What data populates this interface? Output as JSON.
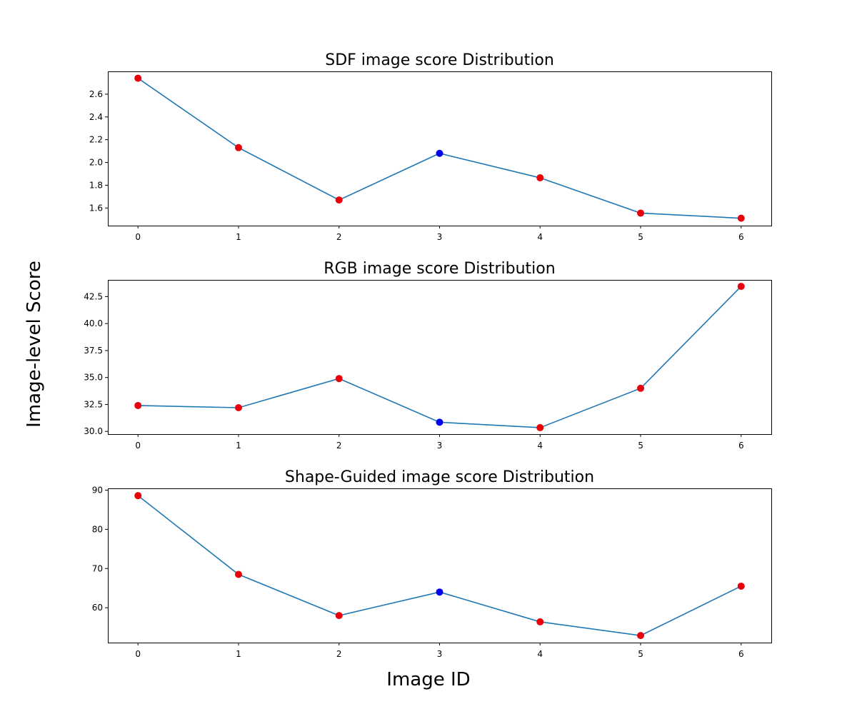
{
  "figure": {
    "ylabel": "Image-level Score",
    "xlabel": "Image ID"
  },
  "colors": {
    "line": "#1f77b4",
    "point_default": "#e8000b",
    "point_highlight": "#0000ee",
    "frame": "#000000"
  },
  "chart_data": [
    {
      "type": "line",
      "title": "SDF image score Distribution",
      "x": [
        0,
        1,
        2,
        3,
        4,
        5,
        6
      ],
      "values": [
        2.74,
        2.13,
        1.67,
        2.08,
        1.865,
        1.555,
        1.51
      ],
      "highlight_index": 3,
      "xlim": [
        -0.3,
        6.3
      ],
      "ylim": [
        1.445,
        2.8
      ],
      "yticks": [
        1.6,
        1.8,
        2.0,
        2.2,
        2.4,
        2.6
      ],
      "ytick_labels": [
        "1.6",
        "1.8",
        "2.0",
        "2.2",
        "2.4",
        "2.6"
      ],
      "xticks": [
        0,
        1,
        2,
        3,
        4,
        5,
        6
      ],
      "xtick_labels": [
        "0",
        "1",
        "2",
        "3",
        "4",
        "5",
        "6"
      ],
      "grid": false
    },
    {
      "type": "line",
      "title": "RGB image score Distribution",
      "x": [
        0,
        1,
        2,
        3,
        4,
        5,
        6
      ],
      "values": [
        32.4,
        32.2,
        34.9,
        30.85,
        30.35,
        34.0,
        43.45
      ],
      "highlight_index": 3,
      "xlim": [
        -0.3,
        6.3
      ],
      "ylim": [
        29.75,
        44.05
      ],
      "yticks": [
        30.0,
        32.5,
        35.0,
        37.5,
        40.0,
        42.5
      ],
      "ytick_labels": [
        "30.0",
        "32.5",
        "35.0",
        "37.5",
        "40.0",
        "42.5"
      ],
      "xticks": [
        0,
        1,
        2,
        3,
        4,
        5,
        6
      ],
      "xtick_labels": [
        "0",
        "1",
        "2",
        "3",
        "4",
        "5",
        "6"
      ],
      "grid": false
    },
    {
      "type": "line",
      "title": "Shape-Guided image score Distribution",
      "x": [
        0,
        1,
        2,
        3,
        4,
        5,
        6
      ],
      "values": [
        88.6,
        68.5,
        58.0,
        64.0,
        56.4,
        52.9,
        65.5
      ],
      "highlight_index": 3,
      "xlim": [
        -0.3,
        6.3
      ],
      "ylim": [
        51.1,
        90.45
      ],
      "yticks": [
        60,
        70,
        80,
        90
      ],
      "ytick_labels": [
        "60",
        "70",
        "80",
        "90"
      ],
      "xticks": [
        0,
        1,
        2,
        3,
        4,
        5,
        6
      ],
      "xtick_labels": [
        "0",
        "1",
        "2",
        "3",
        "4",
        "5",
        "6"
      ],
      "grid": false
    }
  ]
}
